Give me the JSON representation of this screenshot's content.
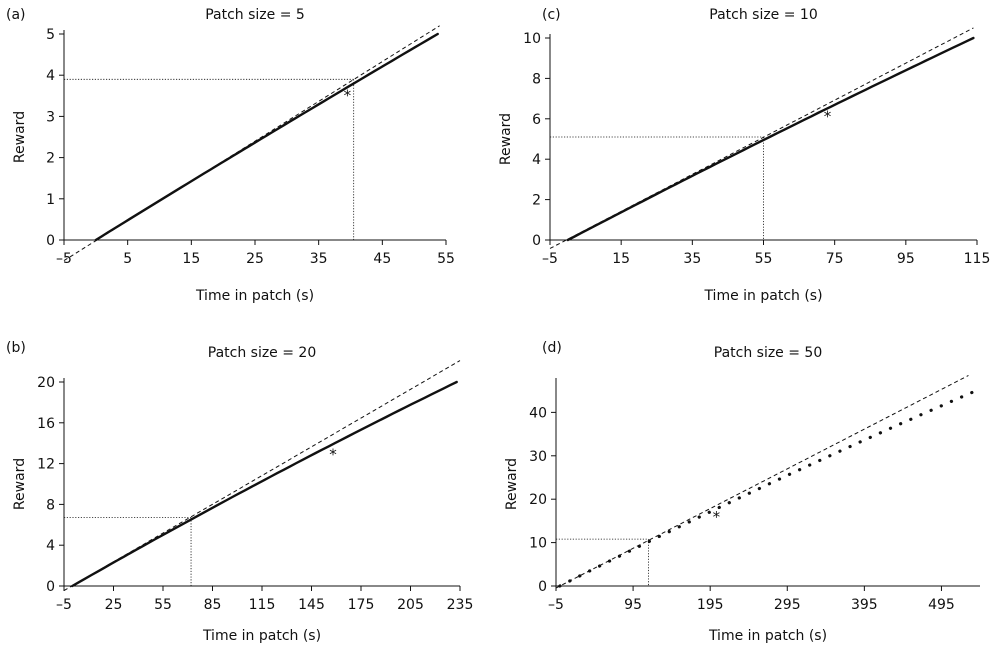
{
  "chart_data": [
    {
      "type": "line",
      "panel_label": "(a)",
      "title": "Patch size = 5",
      "xlabel": "Time in patch (s)",
      "ylabel": "Reward",
      "xlim": [
        -5,
        55
      ],
      "ylim": [
        0,
        5
      ],
      "xticks": [
        "–5",
        "5",
        "15",
        "25",
        "35",
        "45",
        "55"
      ],
      "yticks": [
        "0",
        "1",
        "2",
        "3",
        "4",
        "5"
      ],
      "gain_curve": {
        "x_start": 0,
        "x_end": 53.7,
        "y_start": 0,
        "y_end": 5,
        "curvature": 0.03
      },
      "tangent_line": {
        "x": [
          -5,
          54
        ],
        "y": [
          -0.5,
          5.2
        ]
      },
      "optimal": {
        "x": 40.5,
        "y": 3.9
      },
      "marker": {
        "symbol": "*",
        "x": 39.5,
        "y": 3.6
      },
      "dotted": "thin"
    },
    {
      "type": "line",
      "panel_label": "(c)",
      "title": "Patch size = 10",
      "xlabel": "Time in patch (s)",
      "ylabel": "Reward",
      "xlim": [
        -5,
        115
      ],
      "ylim": [
        0,
        10
      ],
      "xticks": [
        "–5",
        "15",
        "35",
        "55",
        "75",
        "95",
        "115"
      ],
      "yticks": [
        "0",
        "2",
        "4",
        "6",
        "8",
        "10"
      ],
      "gain_curve": {
        "x_start": 0,
        "x_end": 114,
        "y_start": 0,
        "y_end": 10,
        "curvature": 0.05
      },
      "tangent_line": {
        "x": [
          -5,
          114
        ],
        "y": [
          -0.42,
          10.5
        ]
      },
      "optimal": {
        "x": 55,
        "y": 5.1
      },
      "marker": {
        "symbol": "*",
        "x": 73,
        "y": 6.3
      },
      "dotted": "thin"
    },
    {
      "type": "line",
      "panel_label": "(b)",
      "title": "Patch size = 20",
      "xlabel": "Time in patch (s)",
      "ylabel": "Reward",
      "xlim": [
        -5,
        235
      ],
      "ylim": [
        0,
        20
      ],
      "xticks": [
        "–5",
        "25",
        "55",
        "85",
        "115",
        "145",
        "175",
        "205",
        "235"
      ],
      "yticks": [
        "0",
        "4",
        "8",
        "12",
        "16",
        "20"
      ],
      "gain_curve": {
        "x_start": 0,
        "x_end": 233,
        "y_start": 0,
        "y_end": 20,
        "curvature": 0.08
      },
      "tangent_line": {
        "x": [
          -5,
          235
        ],
        "y": [
          -0.45,
          22.1
        ]
      },
      "optimal": {
        "x": 72,
        "y": 6.7
      },
      "marker": {
        "symbol": "*",
        "x": 158,
        "y": 13.3
      },
      "dotted": "thin"
    },
    {
      "type": "line",
      "panel_label": "(d)",
      "title": "Patch size = 50",
      "xlabel": "Time in patch (s)",
      "ylabel": "Reward",
      "xlim": [
        -5,
        545
      ],
      "ylim": [
        0,
        47
      ],
      "xticks": [
        "–5",
        "95",
        "195",
        "295",
        "395",
        "495"
      ],
      "yticks": [
        "0",
        "10",
        "20",
        "30",
        "40"
      ],
      "gain_curve": {
        "x_start": 0,
        "x_end": 540,
        "y_start": 0,
        "y_end": 45,
        "curvature": 0.08
      },
      "tangent_line": {
        "x": [
          -5,
          530
        ],
        "y": [
          -0.47,
          48.5
        ]
      },
      "optimal": {
        "x": 115,
        "y": 10.8
      },
      "marker": {
        "symbol": "*",
        "x": 203,
        "y": 16.8
      },
      "dotted": "thick"
    }
  ]
}
